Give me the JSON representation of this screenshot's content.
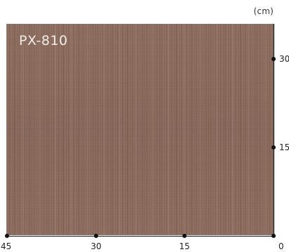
{
  "unit": "(cm)",
  "product_code": "PX-810",
  "swatch_color": "#8a6a5b",
  "x_ticks": [
    "45",
    "30",
    "15",
    "0"
  ],
  "y_ticks": [
    "30",
    "15"
  ]
}
